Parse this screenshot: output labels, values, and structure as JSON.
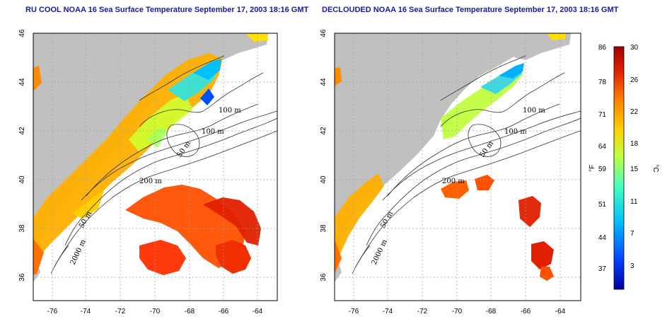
{
  "left_panel": {
    "title": "RU COOL NOAA 16 Sea Surface Temperature September 17, 2003 18:16 GMT",
    "x_ticks": [
      "-76",
      "-74",
      "-72",
      "-70",
      "-68",
      "-66",
      "-64"
    ],
    "y_ticks": [
      "46",
      "44",
      "42",
      "40",
      "38",
      "36"
    ],
    "contour_labels": [
      "100 m",
      "100 m",
      "50 m",
      "200 m",
      "50 m",
      "2000 m"
    ]
  },
  "right_panel": {
    "title": "DECLOUDED NOAA 16 Sea Surface Temperature September 17, 2003 18:16 GMT",
    "x_ticks": [
      "-76",
      "-74",
      "-72",
      "-70",
      "-68",
      "-66",
      "-64"
    ],
    "y_ticks": [
      "46",
      "44",
      "42",
      "40",
      "38",
      "36"
    ],
    "contour_labels": [
      "100 m",
      "100 m",
      "50 m",
      "200 m",
      "50 m",
      "2000 m"
    ]
  },
  "colorbar": {
    "unit_f": "°F",
    "unit_c": "°C",
    "f_ticks": [
      "86",
      "78",
      "71",
      "64",
      "59",
      "51",
      "44",
      "37"
    ],
    "c_ticks": [
      "30",
      "26",
      "22",
      "18",
      "15",
      "11",
      "7",
      "3"
    ],
    "colors": [
      "#0000a0",
      "#0040ff",
      "#00c0ff",
      "#40ffc0",
      "#c0ff40",
      "#ffd000",
      "#ff8000",
      "#e02000",
      "#a00000"
    ]
  },
  "colors": {
    "land": "#c0c0c0",
    "grid": "#a0a0a0",
    "contour": "#303030",
    "title": "#1a1a99"
  }
}
